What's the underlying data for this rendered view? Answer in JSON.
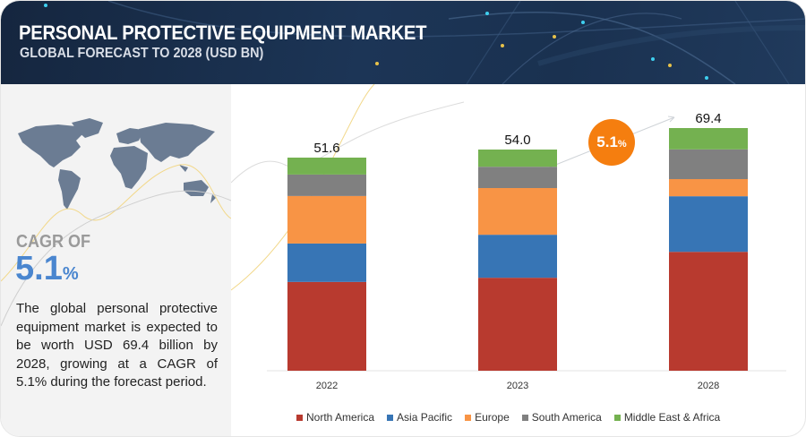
{
  "header": {
    "title": "PERSONAL PROTECTIVE EQUIPMENT MARKET",
    "subtitle": "GLOBAL FORECAST TO 2028 (USD BN)"
  },
  "left_panel": {
    "cagr_label": "CAGR OF",
    "cagr_value": "5.1",
    "cagr_unit": "%",
    "description": "The global personal protective equipment market is expected to be worth USD 69.4 billion by 2028, growing at a CAGR of 5.1% during the forecast period."
  },
  "badge": {
    "value": "5.1",
    "unit": "%",
    "color": "#f57e0f"
  },
  "chart_data": {
    "type": "bar",
    "stacked": true,
    "title": "Personal Protective Equipment Market, Global Forecast to 2028 (USD BN)",
    "xlabel": "",
    "ylabel": "",
    "categories": [
      "2022",
      "2023",
      "2028"
    ],
    "totals": [
      "51.6",
      "54.0",
      "69.4"
    ],
    "total_values": [
      51.6,
      54.0,
      69.4
    ],
    "series": [
      {
        "name": "North America",
        "color": "#b83a2f",
        "values": [
          21.5,
          22.7,
          34.0
        ]
      },
      {
        "name": "Asia Pacific",
        "color": "#3775b5",
        "values": [
          9.3,
          10.5,
          15.9
        ]
      },
      {
        "name": "Europe",
        "color": "#f89445",
        "values": [
          11.5,
          11.4,
          4.9
        ]
      },
      {
        "name": "South America",
        "color": "#808080",
        "values": [
          5.2,
          5.2,
          8.5
        ]
      },
      {
        "name": "Middle East & Africa",
        "color": "#74b150",
        "values": [
          4.1,
          4.2,
          6.1
        ]
      }
    ],
    "annotation": "5.1%",
    "legend": "bottom",
    "grid": false
  }
}
